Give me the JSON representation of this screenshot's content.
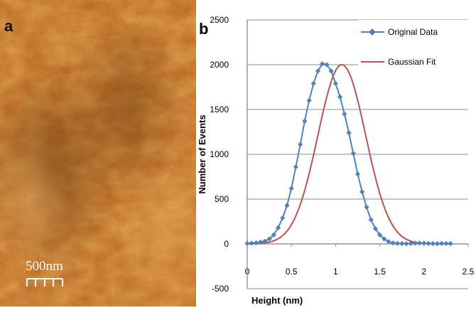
{
  "panel_a": {
    "letter": "a",
    "scale_bar_label": "500nm"
  },
  "panel_b": {
    "letter": "b"
  },
  "chart_data": {
    "type": "line",
    "xlabel": "Height (nm)",
    "ylabel": "Number of Events",
    "xlim": [
      0,
      2.5
    ],
    "ylim": [
      -500,
      2500
    ],
    "xticks": [
      0,
      0.5,
      1,
      1.5,
      2,
      2.5
    ],
    "yticks": [
      -500,
      0,
      500,
      1000,
      1500,
      2000,
      2500
    ],
    "xtick_labels": [
      "0",
      "0.5",
      "1",
      "1.5",
      "2",
      "2.5"
    ],
    "ytick_labels": [
      "-500",
      "0",
      "500",
      "1000",
      "1500",
      "2000",
      "2500"
    ],
    "grid": "horizontal",
    "legend_position": "top-right",
    "series": [
      {
        "name": "Original Data",
        "color": "#4f81bd",
        "marker": "diamond",
        "x": [
          0.0,
          0.05,
          0.1,
          0.15,
          0.2,
          0.25,
          0.3,
          0.35,
          0.4,
          0.45,
          0.5,
          0.55,
          0.6,
          0.65,
          0.7,
          0.75,
          0.8,
          0.85,
          0.9,
          0.95,
          1.0,
          1.05,
          1.1,
          1.15,
          1.2,
          1.25,
          1.3,
          1.35,
          1.4,
          1.45,
          1.5,
          1.55,
          1.6,
          1.65,
          1.7,
          1.75,
          1.8,
          1.85,
          1.9,
          1.95,
          2.0,
          2.05,
          2.1,
          2.15,
          2.2,
          2.25,
          2.3
        ],
        "y": [
          5,
          8,
          12,
          20,
          30,
          55,
          100,
          180,
          290,
          430,
          620,
          860,
          1110,
          1370,
          1600,
          1790,
          1930,
          2010,
          2000,
          1930,
          1790,
          1640,
          1450,
          1240,
          1010,
          780,
          580,
          410,
          270,
          170,
          100,
          55,
          25,
          10,
          5,
          3,
          2,
          5,
          8,
          10,
          8,
          5,
          3,
          2,
          5,
          4,
          3
        ]
      },
      {
        "name": "Gaussian Fit",
        "color": "#c0504d",
        "mean": 1.07,
        "sigma": 0.27,
        "amplitude": 2000
      }
    ]
  }
}
